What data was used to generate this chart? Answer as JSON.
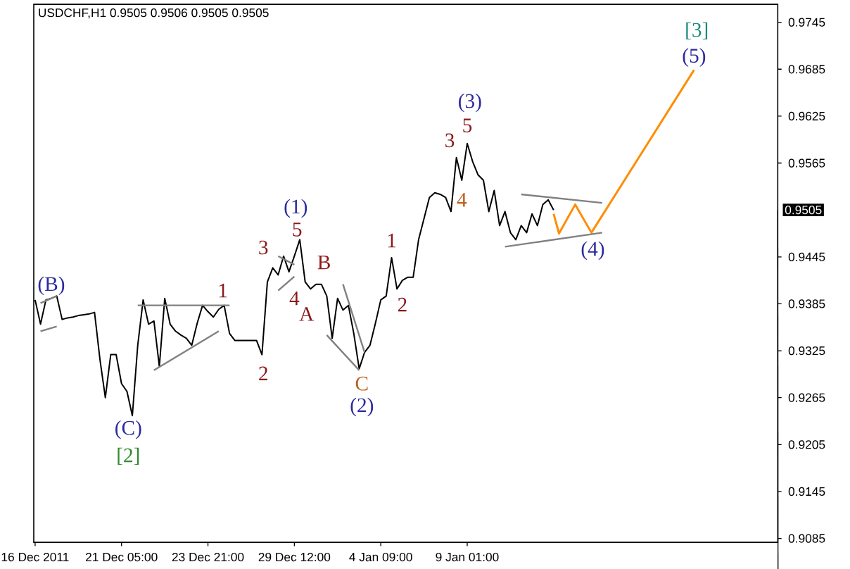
{
  "chart_data": {
    "type": "line",
    "title": "USDCHF,H1  0.9505 0.9506 0.9505 0.9505",
    "categories": [
      "16 Dec 2011",
      null,
      null,
      null,
      null,
      null,
      null,
      null,
      null,
      null,
      null,
      null,
      null,
      null,
      null,
      null,
      "21 Dec 05:00",
      null,
      null,
      null,
      null,
      null,
      null,
      null,
      null,
      null,
      null,
      null,
      null,
      null,
      null,
      null,
      "23 Dec 21:00",
      null,
      null,
      null,
      null,
      null,
      null,
      null,
      null,
      null,
      null,
      null,
      null,
      null,
      null,
      null,
      "29 Dec 12:00",
      null,
      null,
      null,
      null,
      null,
      null,
      null,
      null,
      null,
      null,
      null,
      null,
      null,
      null,
      null,
      "4 Jan 09:00",
      null,
      null,
      null,
      null,
      null,
      null,
      null,
      null,
      null,
      null,
      null,
      null,
      null,
      null,
      null,
      "9 Jan 01:00",
      null,
      null,
      null,
      null,
      null,
      null,
      null,
      null,
      null,
      null,
      null,
      null,
      null,
      null,
      null,
      null,
      null,
      null,
      null,
      null,
      null,
      null,
      null,
      null,
      null,
      null,
      null,
      null,
      null,
      null,
      null,
      null,
      null,
      null,
      null,
      null,
      null,
      null,
      null,
      null,
      null,
      null,
      null,
      null,
      null,
      null,
      null,
      null,
      null,
      null,
      null,
      null,
      null,
      null,
      null,
      null,
      null
    ],
    "ylim": [
      0.908,
      0.9768
    ],
    "yticks": [
      0.9085,
      0.9145,
      0.9205,
      0.9265,
      0.9325,
      0.9385,
      0.9445,
      0.9565,
      0.9625,
      0.9685,
      0.9745
    ],
    "series": [
      {
        "color": "#000000",
        "values": [
          0.939,
          0.9359,
          0.939,
          0.9392,
          0.9395,
          0.9365,
          0.9367,
          0.9368,
          0.937,
          0.9371,
          0.9372,
          0.9374,
          0.9314,
          0.9265,
          0.932,
          0.932,
          0.9283,
          0.9273,
          0.9242,
          0.9332,
          0.939,
          0.9359,
          0.9363,
          0.9305,
          0.9392,
          0.9359,
          0.935,
          0.9345,
          0.9341,
          0.9332,
          0.936,
          0.9383,
          0.9375,
          0.9368,
          0.9378,
          0.9383,
          0.9347,
          0.9338,
          0.9338,
          0.9338,
          0.9338,
          0.9338,
          0.932,
          0.9413,
          0.9431,
          0.9422,
          0.9446,
          0.9426,
          0.9446,
          0.9467,
          0.9413,
          0.9404,
          0.941,
          0.941,
          0.9395,
          0.9341,
          0.9392,
          0.9377,
          0.9383,
          0.9347,
          0.9302,
          0.9323,
          0.9332,
          0.936,
          0.939,
          0.9395,
          0.9444,
          0.9404,
          0.9415,
          0.9419,
          0.9419,
          0.9467,
          0.9494,
          0.9521,
          0.9527,
          0.9525,
          0.9521,
          0.9503,
          0.9572,
          0.9543,
          0.959,
          0.9567,
          0.955,
          0.9543,
          0.9503,
          0.953,
          0.9485,
          0.9503,
          0.9476,
          0.9467,
          0.9485,
          0.9476,
          0.95,
          0.9485,
          0.9512,
          0.9518,
          0.9505,
          null,
          null,
          null,
          null,
          null,
          null,
          null,
          null,
          null,
          null,
          null,
          null,
          null,
          null,
          null,
          null,
          null,
          null,
          null,
          null,
          null,
          null,
          null,
          null,
          null,
          null,
          null,
          null,
          null,
          null,
          null,
          null,
          null,
          null,
          null,
          null,
          null,
          null,
          null,
          null,
          null
        ]
      },
      {
        "color": "#ff8c00",
        "values": [
          null,
          null,
          null,
          null,
          null,
          null,
          null,
          null,
          null,
          null,
          null,
          null,
          null,
          null,
          null,
          null,
          null,
          null,
          null,
          null,
          null,
          null,
          null,
          null,
          null,
          null,
          null,
          null,
          null,
          null,
          null,
          null,
          null,
          null,
          null,
          null,
          null,
          null,
          null,
          null,
          null,
          null,
          null,
          null,
          null,
          null,
          null,
          null,
          null,
          null,
          null,
          null,
          null,
          null,
          null,
          null,
          null,
          null,
          null,
          null,
          null,
          null,
          null,
          null,
          null,
          null,
          null,
          null,
          null,
          null,
          null,
          null,
          null,
          null,
          null,
          null,
          null,
          null,
          null,
          null,
          null,
          null,
          null,
          null,
          null,
          null,
          null,
          null,
          null,
          null,
          null,
          null,
          null,
          null,
          null,
          null,
          0.95,
          0.9475,
          null,
          null,
          0.9512,
          null,
          null,
          0.9476,
          null,
          null,
          null,
          null,
          null,
          null,
          null,
          null,
          null,
          null,
          null,
          null,
          null,
          null,
          null,
          null,
          null,
          null,
          0.9684,
          null,
          null,
          null,
          null,
          null,
          null,
          null,
          null,
          null,
          null,
          null,
          null,
          null,
          null,
          null
        ]
      },
      {
        "color": "#808080",
        "values": [
          null,
          0.9386,
          null,
          null,
          0.9395,
          null,
          null,
          null,
          null,
          null,
          null,
          null,
          null,
          null,
          null,
          null,
          null,
          null,
          null,
          null,
          null,
          null,
          null,
          null,
          null,
          null,
          null,
          null,
          null,
          null,
          null,
          null,
          null,
          null,
          null,
          null,
          null,
          null,
          null,
          null,
          null,
          null,
          null,
          null,
          null,
          null,
          null,
          null,
          null,
          null,
          null,
          null,
          null,
          null,
          null,
          null,
          null,
          null,
          null,
          null,
          null,
          null,
          null,
          null,
          null,
          null,
          null,
          null,
          null,
          null,
          null,
          null,
          null,
          null,
          null,
          null,
          null,
          null,
          null,
          null,
          null,
          null,
          null,
          null,
          null,
          null,
          null,
          null,
          null,
          null,
          null,
          null,
          null,
          null,
          null,
          null,
          null,
          null,
          null,
          null,
          null,
          null,
          null,
          null,
          null,
          null,
          null,
          null,
          null,
          null,
          null,
          null,
          null,
          null,
          null,
          null,
          null,
          null,
          null,
          null,
          null,
          null,
          null,
          null,
          null,
          null,
          null,
          null,
          null,
          null,
          null,
          null,
          null,
          null,
          null,
          null,
          null,
          null
        ]
      },
      {
        "color": "#808080",
        "values": [
          null,
          0.935,
          null,
          null,
          0.9356,
          null,
          null,
          null,
          null,
          null,
          null,
          null,
          null,
          null,
          null,
          null,
          null,
          null,
          null,
          null,
          null,
          null,
          null,
          null,
          null,
          null,
          null,
          null,
          null,
          null,
          null,
          null,
          null,
          null,
          null,
          null,
          null,
          null,
          null,
          null,
          null,
          null,
          null,
          null,
          null,
          null,
          null,
          null,
          null,
          null,
          null,
          null,
          null,
          null,
          null,
          null,
          null,
          null,
          null,
          null,
          null,
          null,
          null,
          null,
          null,
          null,
          null,
          null,
          null,
          null,
          null,
          null,
          null,
          null,
          null,
          null,
          null,
          null,
          null,
          null,
          null,
          null,
          null,
          null,
          null,
          null,
          null,
          null,
          null,
          null,
          null,
          null,
          null,
          null,
          null,
          null,
          null,
          null,
          null,
          null,
          null,
          null,
          null,
          null,
          null,
          null,
          null,
          null,
          null,
          null,
          null,
          null,
          null,
          null,
          null,
          null,
          null,
          null,
          null,
          null,
          null,
          null,
          null,
          null,
          null,
          null,
          null,
          null,
          null,
          null,
          null,
          null,
          null,
          null,
          null,
          null,
          null,
          null
        ]
      },
      {
        "color": "#808080",
        "values": [
          null,
          null,
          null,
          null,
          null,
          null,
          null,
          null,
          null,
          null,
          null,
          null,
          null,
          null,
          null,
          null,
          null,
          null,
          null,
          0.9383,
          null,
          null,
          null,
          null,
          null,
          null,
          null,
          null,
          null,
          null,
          null,
          null,
          null,
          null,
          null,
          null,
          0.9383,
          null,
          null,
          null,
          null,
          null,
          null,
          null,
          null,
          null,
          null,
          null,
          null,
          null,
          null,
          null,
          null,
          null,
          null,
          null,
          null,
          null,
          null,
          null,
          null,
          null,
          null,
          null,
          null,
          null,
          null,
          null,
          null,
          null,
          null,
          null,
          null,
          null,
          null,
          null,
          null,
          null,
          null,
          null,
          null,
          null,
          null,
          null,
          null,
          null,
          null,
          null,
          null,
          null,
          null,
          null,
          null,
          null,
          null,
          null,
          null,
          null,
          null,
          null,
          null,
          null,
          null,
          null,
          null,
          null,
          null,
          null,
          null,
          null,
          null,
          null,
          null,
          null,
          null,
          null,
          null,
          null,
          null,
          null,
          null,
          null,
          null,
          null,
          null,
          null,
          null,
          null,
          null,
          null,
          null,
          null,
          null,
          null,
          null,
          null,
          null,
          null
        ]
      },
      {
        "color": "#808080",
        "values": [
          null,
          null,
          null,
          null,
          null,
          null,
          null,
          null,
          null,
          null,
          null,
          null,
          null,
          null,
          null,
          null,
          null,
          null,
          null,
          null,
          null,
          null,
          0.93,
          null,
          null,
          null,
          null,
          null,
          null,
          null,
          null,
          null,
          null,
          null,
          0.935,
          null,
          null,
          null,
          null,
          null,
          null,
          null,
          null,
          null,
          null,
          null,
          null,
          null,
          null,
          null,
          null,
          null,
          null,
          null,
          null,
          null,
          null,
          null,
          null,
          null,
          null,
          null,
          null,
          null,
          null,
          null,
          null,
          null,
          null,
          null,
          null,
          null,
          null,
          null,
          null,
          null,
          null,
          null,
          null,
          null,
          null,
          null,
          null,
          null,
          null,
          null,
          null,
          null,
          null,
          null,
          null,
          null,
          null,
          null,
          null,
          null,
          null,
          null,
          null,
          null,
          null,
          null,
          null,
          null,
          null,
          null,
          null,
          null,
          null,
          null,
          null,
          null,
          null,
          null,
          null,
          null,
          null,
          null,
          null,
          null,
          null,
          null,
          null,
          null,
          null,
          null,
          null,
          null,
          null,
          null,
          null,
          null,
          null,
          null,
          null,
          null,
          null,
          null
        ]
      },
      {
        "color": "#808080",
        "values": [
          null,
          null,
          null,
          null,
          null,
          null,
          null,
          null,
          null,
          null,
          null,
          null,
          null,
          null,
          null,
          null,
          null,
          null,
          null,
          null,
          null,
          null,
          null,
          null,
          null,
          null,
          null,
          null,
          null,
          null,
          null,
          null,
          null,
          null,
          null,
          null,
          null,
          null,
          null,
          null,
          null,
          null,
          null,
          null,
          null,
          0.9446,
          null,
          null,
          0.9435,
          null,
          null,
          null,
          null,
          null,
          null,
          null,
          null,
          null,
          null,
          null,
          null,
          null,
          null,
          null,
          null,
          null,
          null,
          null,
          null,
          null,
          null,
          null,
          null,
          null,
          null,
          null,
          null,
          null,
          null,
          null,
          null,
          null,
          null,
          null,
          null,
          null,
          null,
          null,
          null,
          null,
          null,
          null,
          null,
          null,
          null,
          null,
          null,
          null,
          null,
          null,
          null,
          null,
          null,
          null,
          null,
          null,
          null,
          null,
          null,
          null,
          null,
          null,
          null,
          null,
          null,
          null,
          null,
          null,
          null,
          null,
          null,
          null,
          null,
          null,
          null,
          null,
          null,
          null,
          null,
          null,
          null,
          null,
          null,
          null,
          null,
          null,
          null,
          null
        ]
      },
      {
        "color": "#808080",
        "values": [
          null,
          null,
          null,
          null,
          null,
          null,
          null,
          null,
          null,
          null,
          null,
          null,
          null,
          null,
          null,
          null,
          null,
          null,
          null,
          null,
          null,
          null,
          null,
          null,
          null,
          null,
          null,
          null,
          null,
          null,
          null,
          null,
          null,
          null,
          null,
          null,
          null,
          null,
          null,
          null,
          null,
          null,
          null,
          null,
          null,
          0.9402,
          null,
          null,
          0.942,
          null,
          null,
          null,
          null,
          null,
          null,
          null,
          null,
          null,
          null,
          null,
          null,
          null,
          null,
          null,
          null,
          null,
          null,
          null,
          null,
          null,
          null,
          null,
          null,
          null,
          null,
          null,
          null,
          null,
          null,
          null,
          null,
          null,
          null,
          null,
          null,
          null,
          null,
          null,
          null,
          null,
          null,
          null,
          null,
          null,
          null,
          null,
          null,
          null,
          null,
          null,
          null,
          null,
          null,
          null,
          null,
          null,
          null,
          null,
          null,
          null,
          null,
          null,
          null,
          null,
          null,
          null,
          null,
          null,
          null,
          null,
          null,
          null,
          null,
          null,
          null,
          null,
          null,
          null,
          null,
          null,
          null,
          null,
          null,
          null,
          null,
          null,
          null,
          null
        ]
      },
      {
        "color": "#808080",
        "values": [
          null,
          null,
          null,
          null,
          null,
          null,
          null,
          null,
          null,
          null,
          null,
          null,
          null,
          null,
          null,
          null,
          null,
          null,
          null,
          null,
          null,
          null,
          null,
          null,
          null,
          null,
          null,
          null,
          null,
          null,
          null,
          null,
          null,
          null,
          null,
          null,
          null,
          null,
          null,
          null,
          null,
          null,
          null,
          null,
          null,
          null,
          null,
          null,
          null,
          null,
          null,
          null,
          null,
          null,
          0.9345,
          null,
          null,
          null,
          null,
          null,
          0.93,
          null,
          null,
          null,
          null,
          null,
          null,
          null,
          null,
          null,
          null,
          null,
          null,
          null,
          null,
          null,
          null,
          null,
          null,
          null,
          null,
          null,
          null,
          null,
          null,
          null,
          null,
          null,
          null,
          null,
          null,
          null,
          null,
          null,
          null,
          null,
          null,
          null,
          null,
          null,
          null,
          null,
          null,
          null,
          null,
          null,
          null,
          null,
          null,
          null,
          null,
          null,
          null,
          null,
          null,
          null,
          null,
          null,
          null,
          null,
          null,
          null,
          null,
          null,
          null,
          null,
          null,
          null,
          null,
          null,
          null,
          null,
          null,
          null,
          null,
          null,
          null,
          null
        ]
      },
      {
        "color": "#808080",
        "values": [
          null,
          null,
          null,
          null,
          null,
          null,
          null,
          null,
          null,
          null,
          null,
          null,
          null,
          null,
          null,
          null,
          null,
          null,
          null,
          null,
          null,
          null,
          null,
          null,
          null,
          null,
          null,
          null,
          null,
          null,
          null,
          null,
          null,
          null,
          null,
          null,
          null,
          null,
          null,
          null,
          null,
          null,
          null,
          null,
          null,
          null,
          null,
          null,
          null,
          null,
          null,
          null,
          null,
          null,
          null,
          null,
          null,
          0.941,
          null,
          null,
          null,
          0.9323,
          null,
          null,
          null,
          null,
          null,
          null,
          null,
          null,
          null,
          null,
          null,
          null,
          null,
          null,
          null,
          null,
          null,
          null,
          null,
          null,
          null,
          null,
          null,
          null,
          null,
          null,
          null,
          null,
          null,
          null,
          null,
          null,
          null,
          null,
          null,
          null,
          null,
          null,
          null,
          null,
          null,
          null,
          null,
          null,
          null,
          null,
          null,
          null,
          null,
          null,
          null,
          null,
          null,
          null,
          null,
          null,
          null,
          null,
          null,
          null,
          null,
          null,
          null,
          null,
          null,
          null,
          null,
          null,
          null,
          null,
          null,
          null,
          null,
          null,
          null,
          null
        ]
      },
      {
        "color": "#808080",
        "values": [
          null,
          null,
          null,
          null,
          null,
          null,
          null,
          null,
          null,
          null,
          null,
          null,
          null,
          null,
          null,
          null,
          null,
          null,
          null,
          null,
          null,
          null,
          null,
          null,
          null,
          null,
          null,
          null,
          null,
          null,
          null,
          null,
          null,
          null,
          null,
          null,
          null,
          null,
          null,
          null,
          null,
          null,
          null,
          null,
          null,
          null,
          null,
          null,
          null,
          null,
          null,
          null,
          null,
          null,
          null,
          null,
          null,
          null,
          null,
          null,
          null,
          null,
          null,
          null,
          null,
          null,
          null,
          null,
          null,
          null,
          null,
          null,
          null,
          null,
          null,
          null,
          null,
          null,
          null,
          null,
          null,
          null,
          null,
          null,
          null,
          null,
          null,
          null,
          null,
          null,
          0.9525,
          null,
          null,
          null,
          null,
          null,
          null,
          null,
          null,
          null,
          null,
          null,
          null,
          null,
          null,
          0.9514,
          null,
          null,
          null,
          null,
          null,
          null,
          null,
          null,
          null,
          null,
          null,
          null,
          null,
          null,
          null,
          null,
          null,
          null,
          null,
          null,
          null,
          null,
          null,
          null,
          null,
          null,
          null,
          null,
          null,
          null,
          null,
          null
        ]
      },
      {
        "color": "#808080",
        "values": [
          null,
          null,
          null,
          null,
          null,
          null,
          null,
          null,
          null,
          null,
          null,
          null,
          null,
          null,
          null,
          null,
          null,
          null,
          null,
          null,
          null,
          null,
          null,
          null,
          null,
          null,
          null,
          null,
          null,
          null,
          null,
          null,
          null,
          null,
          null,
          null,
          null,
          null,
          null,
          null,
          null,
          null,
          null,
          null,
          null,
          null,
          null,
          null,
          null,
          null,
          null,
          null,
          null,
          null,
          null,
          null,
          null,
          null,
          null,
          null,
          null,
          null,
          null,
          null,
          null,
          null,
          null,
          null,
          null,
          null,
          null,
          null,
          null,
          null,
          null,
          null,
          null,
          null,
          null,
          null,
          null,
          null,
          null,
          null,
          null,
          null,
          null,
          0.9458,
          null,
          null,
          null,
          null,
          null,
          null,
          null,
          null,
          null,
          null,
          null,
          null,
          null,
          null,
          null,
          null,
          null,
          0.9476,
          null,
          null,
          null,
          null,
          null,
          null,
          null,
          null,
          null,
          null,
          null,
          null,
          null,
          null,
          null,
          null,
          null,
          null,
          null,
          null,
          null,
          null,
          null,
          null,
          null,
          null,
          null,
          null,
          null,
          null,
          null,
          null
        ]
      }
    ],
    "annotations": [
      "(B)",
      "(C)",
      "[2]",
      "1",
      "2",
      "3",
      "(1)",
      "5",
      "4",
      "A",
      "B",
      "C",
      "(2)",
      "1",
      "2",
      "3",
      "(3)",
      "5",
      "4",
      "(4)",
      "[3]",
      "(5)",
      "0.9505"
    ]
  }
}
